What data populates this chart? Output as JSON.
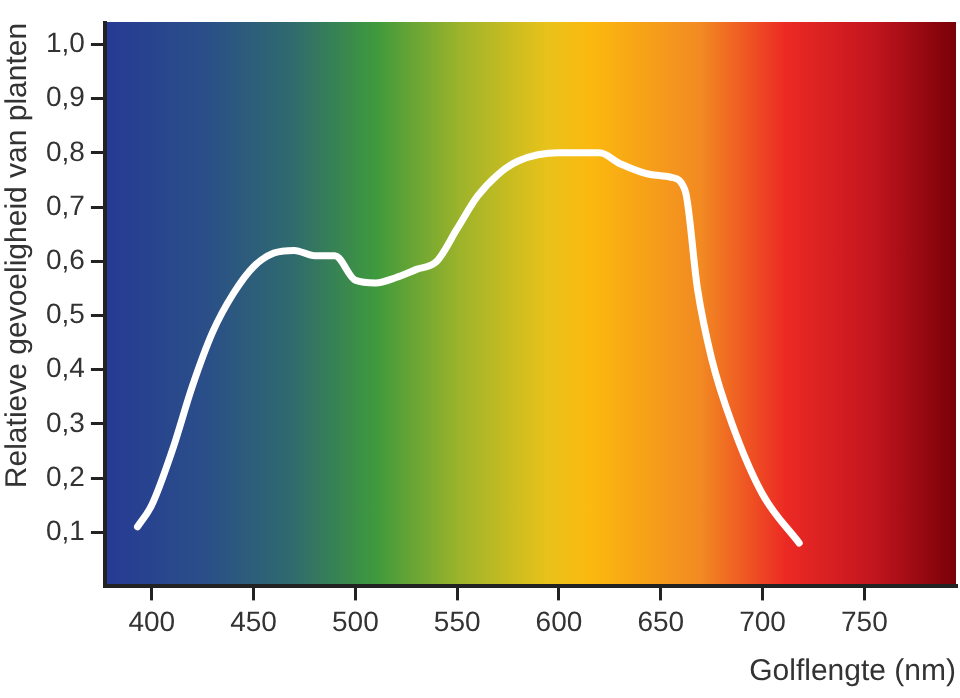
{
  "chart_data": {
    "type": "line",
    "xlabel": "Golflengte (nm)",
    "ylabel": "Relatieve gevoeligheid van planten",
    "x": [
      393,
      400,
      410,
      420,
      430,
      440,
      450,
      460,
      470,
      480,
      490,
      500,
      510,
      520,
      530,
      540,
      550,
      560,
      570,
      580,
      600,
      620,
      630,
      645,
      655,
      662,
      668,
      675,
      685,
      700,
      718
    ],
    "series": [
      {
        "color": "#ffffff",
        "values": [
          0.11,
          0.15,
          0.25,
          0.37,
          0.47,
          0.54,
          0.59,
          0.615,
          0.62,
          0.61,
          0.61,
          0.565,
          0.56,
          0.57,
          0.585,
          0.6,
          0.66,
          0.72,
          0.76,
          0.785,
          0.8,
          0.8,
          0.78,
          0.76,
          0.755,
          0.73,
          0.55,
          0.42,
          0.3,
          0.17,
          0.08
        ]
      }
    ],
    "xlim": [
      377,
      795
    ],
    "xticks": [
      400,
      450,
      500,
      550,
      600,
      650,
      700,
      750
    ],
    "ylim": [
      0,
      1.04
    ],
    "yticks": [
      {
        "value": 0.1,
        "label": "0,1"
      },
      {
        "value": 0.2,
        "label": "0,2"
      },
      {
        "value": 0.3,
        "label": "0,3"
      },
      {
        "value": 0.4,
        "label": "0,4"
      },
      {
        "value": 0.5,
        "label": "0,5"
      },
      {
        "value": 0.6,
        "label": "0,6"
      },
      {
        "value": 0.7,
        "label": "0,7"
      },
      {
        "value": 0.8,
        "label": "0,8"
      },
      {
        "value": 0.9,
        "label": "0,9"
      },
      {
        "value": 1.0,
        "label": "1,0"
      }
    ],
    "marker": "none",
    "line_style": "solid",
    "legend": false
  }
}
